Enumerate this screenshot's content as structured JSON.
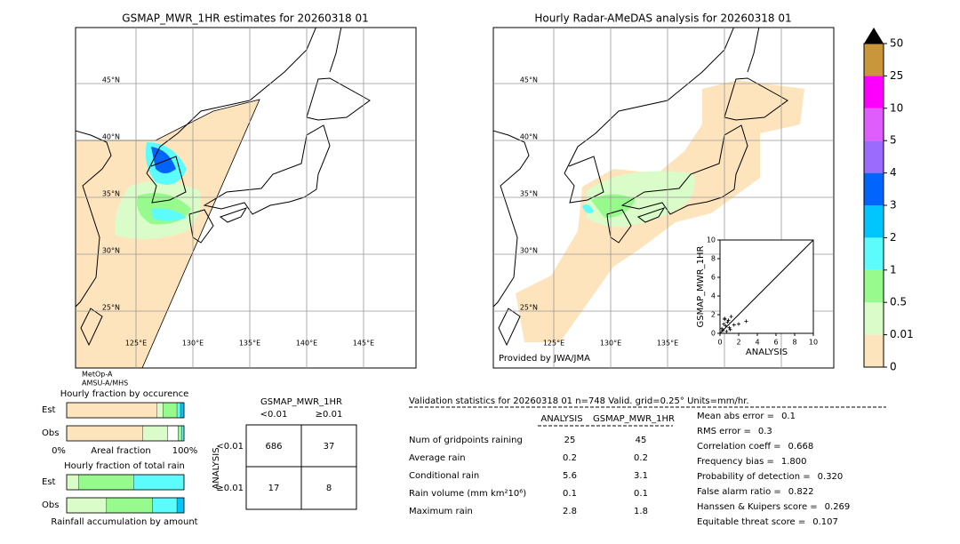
{
  "left_map": {
    "title": "GSMAP_MWR_1HR estimates for 20260318 01",
    "lat_labels": [
      "45°N",
      "40°N",
      "35°N",
      "30°N",
      "25°N"
    ],
    "lon_labels": [
      "125°E",
      "130°E",
      "135°E",
      "140°E",
      "145°E"
    ],
    "satellites": [
      "MetOp-A",
      "AMSU-A/MHS"
    ]
  },
  "right_map": {
    "title": "Hourly Radar-AMeDAS analysis for 20260318 01",
    "lat_labels": [
      "45°N",
      "40°N",
      "35°N",
      "30°N",
      "25°N"
    ],
    "lon_labels": [
      "125°E",
      "130°E",
      "135°E"
    ],
    "credit": "Provided by JWA/JMA"
  },
  "colorbar": {
    "ticks": [
      0,
      0.01,
      0.5,
      1,
      2,
      3,
      4,
      5,
      10,
      25,
      50
    ],
    "colors": [
      "#fde4bd",
      "#dafcc9",
      "#97fa8d",
      "#5dfcfc",
      "#00c6fd",
      "#0064fd",
      "#9a6bfd",
      "#df5cfd",
      "#fd00fd",
      "#c9963c"
    ],
    "extend_color": "#000000"
  },
  "scatter": {
    "type": "scatter",
    "xlabel": "ANALYSIS",
    "ylabel": "GSMAP_MWR_1HR",
    "xlim": [
      0,
      10
    ],
    "ylim": [
      0,
      10
    ],
    "xticks": [
      0,
      2,
      4,
      6,
      8,
      10
    ],
    "yticks": [
      0,
      2,
      4,
      6,
      8,
      10
    ],
    "x": [
      0.2,
      0.4,
      0.5,
      0.6,
      0.8,
      1.0,
      1.2,
      0.3,
      0.7,
      1.5,
      2.0,
      2.8,
      0.9,
      1.1,
      0.5
    ],
    "y": [
      0.5,
      1.0,
      1.5,
      0.8,
      1.2,
      0.6,
      1.8,
      0.3,
      0.2,
      0.9,
      1.0,
      1.3,
      1.4,
      0.4,
      1.6
    ]
  },
  "occurrence": {
    "title": "Hourly fraction by occurence",
    "axis_left": "0%",
    "axis_label": "Areal fraction",
    "axis_right": "100%",
    "rows": [
      {
        "name": "Est",
        "values": [
          0.77,
          0.05,
          0.12,
          0.03,
          0.03
        ],
        "colors": [
          "#fde4bd",
          "#dafcc9",
          "#97fa8d",
          "#5dfcfc",
          "#00c6fd"
        ]
      },
      {
        "name": "Obs",
        "values": [
          0.65,
          0.21,
          0.09,
          0.03,
          0.02
        ],
        "colors": [
          "#fde4bd",
          "#dafcc9",
          "#ffffff",
          "#97fa8d",
          "#5dfcfc"
        ]
      }
    ]
  },
  "total_rain": {
    "title": "Hourly fraction of total rain",
    "footer": "Rainfall accumulation by amount",
    "rows": [
      {
        "name": "Est",
        "values": [
          0.1,
          0.47,
          0.43
        ],
        "colors": [
          "#dafcc9",
          "#97fa8d",
          "#5dfcfc"
        ]
      },
      {
        "name": "Obs",
        "values": [
          0.34,
          0.39,
          0.21,
          0.06
        ],
        "colors": [
          "#dafcc9",
          "#97fa8d",
          "#5dfcfc",
          "#00c6fd"
        ]
      }
    ]
  },
  "contingency": {
    "title": "GSMAP_MWR_1HR",
    "columns": [
      "<0.01",
      "≥0.01"
    ],
    "row_axis": "ANALYSIS",
    "rows": [
      {
        "name": "<0.01",
        "cells": [
          686,
          37
        ]
      },
      {
        "name": "≥0.01",
        "cells": [
          17,
          8
        ]
      }
    ]
  },
  "validation": {
    "header": "Validation statistics for 20260318 01  n=748 Valid. grid=0.25° Units=mm/hr.",
    "columns": [
      "ANALYSIS",
      "GSMAP_MWR_1HR"
    ],
    "rows": [
      {
        "label": "Num of gridpoints raining",
        "analysis": 25,
        "gsmap": 45
      },
      {
        "label": "Average rain",
        "analysis": 0.2,
        "gsmap": 0.2
      },
      {
        "label": "Conditional rain",
        "analysis": 5.6,
        "gsmap": 3.1
      },
      {
        "label": "Rain volume (mm km²10⁶)",
        "analysis": 0.1,
        "gsmap": 0.1
      },
      {
        "label": "Maximum rain",
        "analysis": 2.8,
        "gsmap": 1.8
      }
    ],
    "scores": [
      {
        "label": "Mean abs error =",
        "value": 0.1
      },
      {
        "label": "RMS error =",
        "value": 0.3
      },
      {
        "label": "Correlation coeff =",
        "value": 0.668
      },
      {
        "label": "Frequency bias =",
        "value": 1.8,
        "value_label": "1.800"
      },
      {
        "label": "Probability of detection =",
        "value": 0.32,
        "value_label": "0.320"
      },
      {
        "label": "False alarm ratio =",
        "value": 0.822
      },
      {
        "label": "Hanssen & Kuipers score =",
        "value": 0.269
      },
      {
        "label": "Equitable threat score =",
        "value": 0.107
      }
    ]
  }
}
